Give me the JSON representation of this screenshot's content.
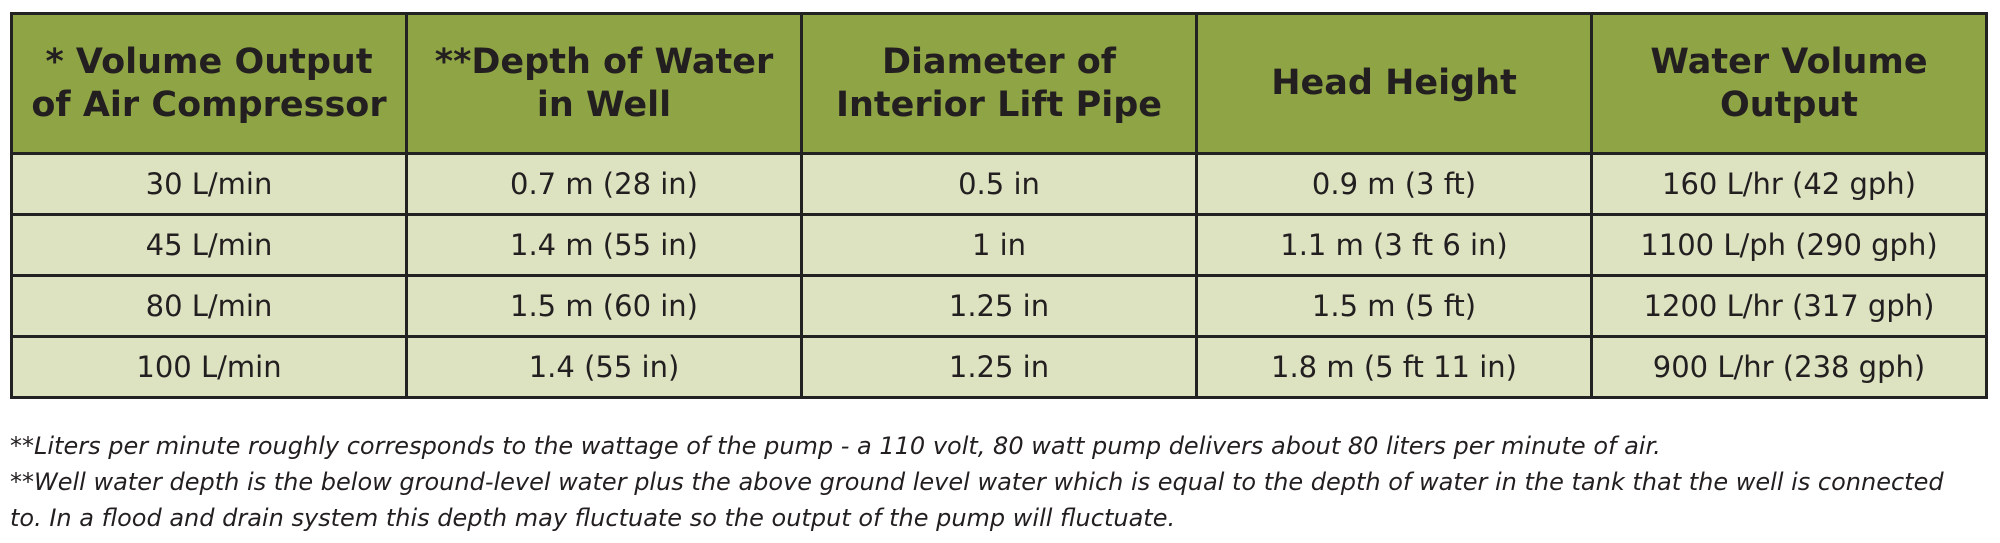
{
  "table": {
    "header": [
      [
        "* Volume Output",
        "of Air Compressor"
      ],
      [
        "**Depth of Water",
        "in Well"
      ],
      [
        "Diameter of",
        "Interior Lift Pipe"
      ],
      [
        "Head Height"
      ],
      [
        "Water Volume",
        "Output"
      ]
    ],
    "rows": [
      [
        "30 L/min",
        "0.7 m (28 in)",
        "0.5 in",
        "0.9 m (3 ft)",
        "160 L/hr (42 gph)"
      ],
      [
        "45 L/min",
        "1.4 m (55 in)",
        "1 in",
        "1.1 m (3 ft 6 in)",
        "1100 L/ph (290 gph)"
      ],
      [
        "80 L/min",
        "1.5 m (60 in)",
        "1.25 in",
        "1.5 m (5 ft)",
        "1200 L/hr (317 gph)"
      ],
      [
        "100 L/min",
        "1.4 (55 in)",
        "1.25 in",
        "1.8 m (5 ft 11 in)",
        "900 L/hr (238 gph)"
      ]
    ]
  },
  "notes": [
    "**Liters per minute roughly corresponds to the wattage of the pump - a 110 volt, 80 watt pump delivers about 80 liters per minute of air.",
    "**Well water depth is the below ground-level water plus the above ground level water which is equal to the depth of water in the tank that the well is connected to. In a flood and drain system this depth may fluctuate so the output of the pump will fluctuate."
  ]
}
